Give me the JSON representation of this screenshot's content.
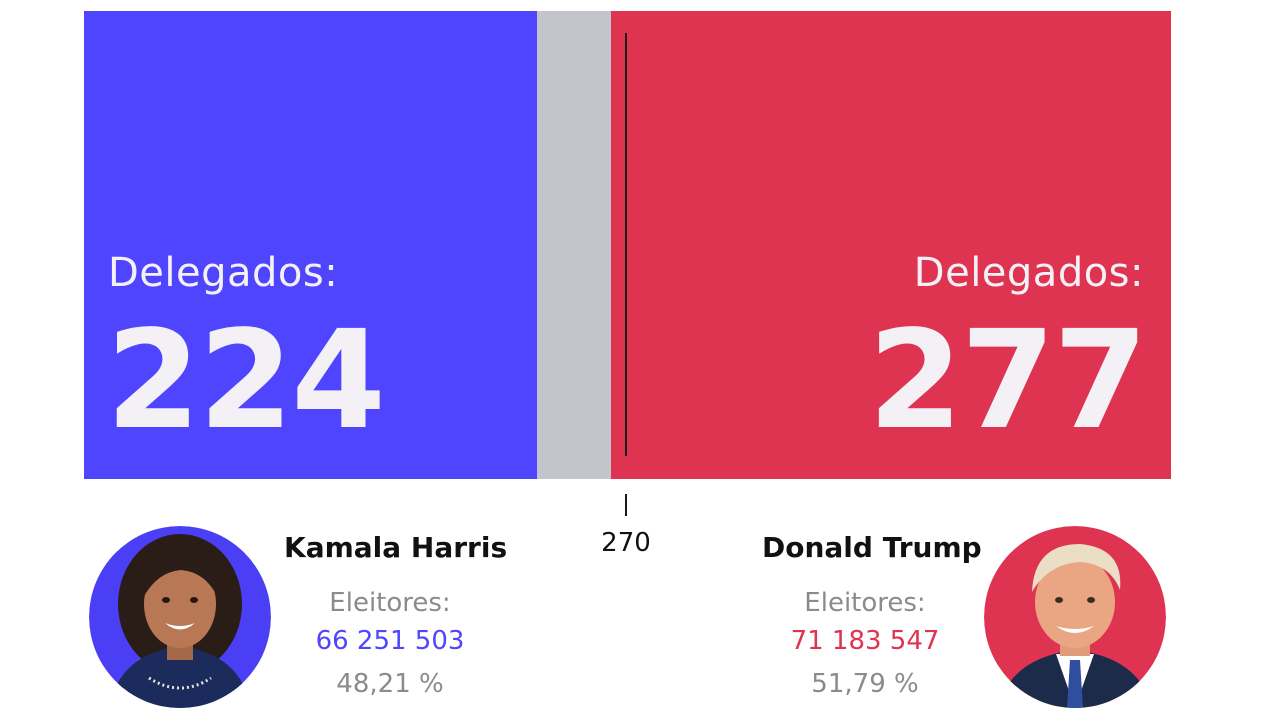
{
  "chart_data": {
    "type": "bar",
    "categories": [
      "Kamala Harris",
      "Donald Trump"
    ],
    "values": [
      224,
      277
    ],
    "total": 538,
    "threshold": 270,
    "threshold_label": "270",
    "colors": {
      "harris": "#5045ff",
      "trump": "#df3352",
      "remaining": "#c4c4cc",
      "text_on_bar": "#f3f1f6"
    }
  },
  "harris": {
    "delegates_label": "Delegados:",
    "delegates": "224",
    "name": "Kamala Harris",
    "voters_label": "Eleitores:",
    "voters": "66 251 503",
    "percent": "48,21 %",
    "color": "#5045ff"
  },
  "trump": {
    "delegates_label": "Delegados:",
    "delegates": "277",
    "name": "Donald Trump",
    "voters_label": "Eleitores:",
    "voters": "71 183 547",
    "percent": "51,79 %",
    "color": "#df3352"
  }
}
